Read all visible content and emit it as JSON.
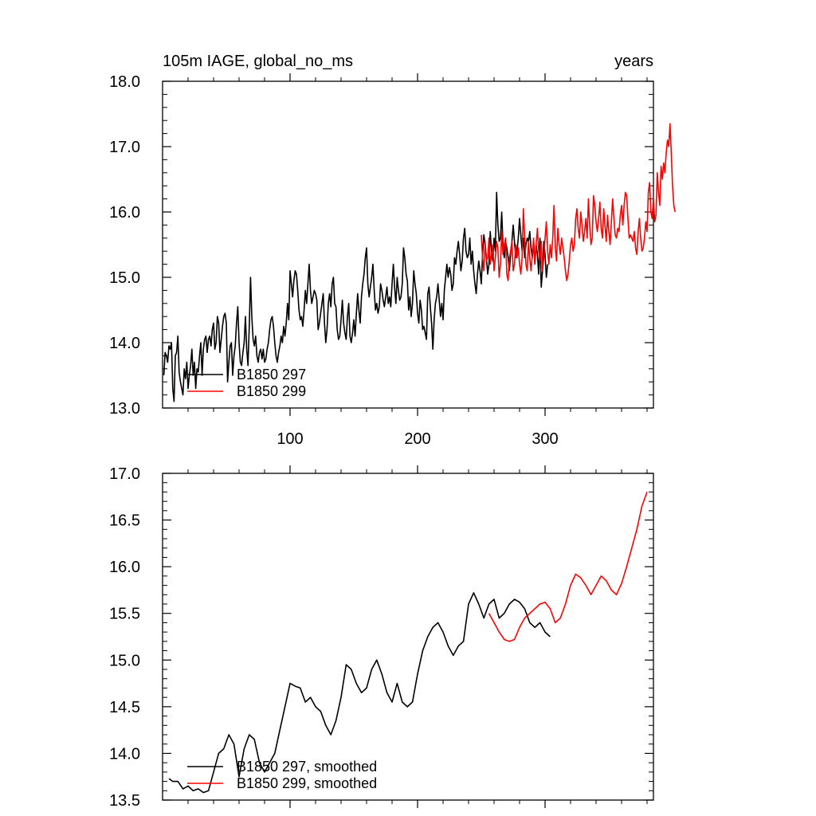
{
  "chart_data": [
    {
      "type": "line",
      "title": "105m IAGE, global_no_ms",
      "units": "years",
      "xlim": [
        0,
        385
      ],
      "ylim": [
        13.0,
        18.0
      ],
      "x_ticks": [
        100,
        200,
        300
      ],
      "x_tick_labels": [
        "100",
        "200",
        "300"
      ],
      "y_ticks": [
        13.0,
        14.0,
        15.0,
        16.0,
        17.0,
        18.0
      ],
      "y_tick_labels": [
        "13.0",
        "14.0",
        "15.0",
        "16.0",
        "17.0",
        "18.0"
      ],
      "legend_position": "bottom-left",
      "series": [
        {
          "name": "B1850 297",
          "color": "#000000",
          "x_start": 1,
          "values": [
            13.5,
            13.85,
            13.8,
            13.7,
            13.95,
            13.9,
            14.0,
            13.3,
            13.1,
            13.8,
            13.85,
            14.1,
            13.55,
            13.4,
            13.3,
            13.2,
            13.6,
            13.45,
            13.7,
            13.3,
            13.5,
            13.65,
            13.9,
            13.5,
            13.7,
            13.3,
            13.6,
            13.55,
            13.8,
            14.0,
            13.5,
            13.9,
            14.05,
            14.1,
            13.85,
            14.05,
            14.1,
            13.95,
            14.2,
            14.3,
            13.9,
            14.0,
            14.4,
            14.3,
            13.85,
            14.05,
            14.25,
            14.4,
            14.45,
            14.3,
            13.4,
            13.7,
            13.95,
            14.0,
            13.5,
            13.8,
            13.95,
            14.3,
            14.55,
            14.0,
            13.7,
            13.65,
            13.85,
            14.0,
            14.4,
            13.9,
            13.65,
            14.25,
            15.0,
            14.4,
            14.05,
            13.95,
            14.1,
            13.8,
            13.7,
            13.85,
            13.9,
            13.75,
            13.9,
            13.7,
            13.75,
            13.9,
            14.0,
            14.2,
            14.35,
            14.4,
            14.25,
            14.0,
            13.8,
            13.7,
            13.85,
            13.95,
            14.1,
            14.0,
            14.25,
            14.1,
            14.3,
            14.6,
            14.35,
            15.1,
            14.9,
            14.7,
            14.95,
            15.1,
            15.05,
            14.8,
            14.5,
            14.35,
            14.4,
            14.25,
            14.5,
            14.8,
            14.6,
            14.9,
            15.2,
            14.8,
            14.6,
            14.7,
            14.8,
            14.75,
            14.65,
            14.2,
            14.3,
            14.45,
            14.6,
            14.75,
            14.3,
            14.0,
            14.2,
            14.6,
            14.75,
            14.55,
            14.9,
            15.0,
            14.6,
            14.55,
            14.2,
            14.05,
            14.1,
            14.35,
            14.65,
            14.3,
            14.15,
            14.05,
            14.4,
            14.6,
            14.1,
            14.0,
            14.15,
            14.35,
            14.1,
            14.45,
            14.75,
            14.5,
            14.3,
            14.7,
            14.9,
            15.05,
            15.3,
            15.45,
            14.9,
            14.7,
            14.85,
            15.0,
            15.2,
            14.8,
            14.5,
            14.6,
            14.45,
            14.55,
            14.9,
            14.8,
            14.65,
            14.55,
            14.7,
            14.85,
            14.6,
            14.7,
            14.55,
            14.9,
            15.2,
            14.85,
            14.6,
            15.0,
            14.8,
            14.65,
            14.7,
            14.9,
            15.45,
            15.3,
            15.05,
            14.95,
            14.5,
            14.7,
            14.4,
            14.6,
            15.1,
            14.9,
            14.75,
            14.45,
            14.3,
            14.65,
            14.5,
            14.2,
            14.25,
            14.15,
            14.05,
            14.75,
            14.85,
            14.55,
            14.3,
            13.9,
            14.35,
            14.6,
            14.7,
            14.9,
            14.65,
            14.4,
            14.6,
            14.35,
            14.8,
            15.0,
            15.2,
            15.0,
            15.15,
            15.05,
            14.8,
            14.9,
            15.3,
            15.2,
            15.4,
            15.55,
            15.35,
            15.1,
            15.25,
            15.6,
            15.75,
            15.4,
            15.3,
            15.35,
            15.6,
            15.2,
            15.4,
            15.1,
            14.9,
            14.75,
            15.05,
            15.25,
            15.1,
            14.9,
            15.35,
            15.65,
            15.5,
            15.3,
            15.05,
            15.2,
            15.7,
            15.4,
            15.25,
            15.6,
            15.4,
            16.3,
            15.8,
            15.55,
            15.6,
            16.0,
            15.5,
            15.3,
            15.55,
            15.45,
            15.3,
            15.1,
            15.35,
            15.55,
            15.8,
            15.55,
            15.3,
            15.4,
            15.6,
            15.9,
            15.65,
            15.4,
            15.6,
            15.3,
            15.5,
            15.6,
            15.55,
            15.7,
            15.45,
            15.3,
            15.55,
            15.2,
            15.5,
            15.35,
            15.05,
            15.6,
            14.85,
            15.1,
            15.55,
            15.35,
            15.0,
            15.2
          ]
        },
        {
          "name": "B1850 299",
          "color": "#ff0000",
          "x_start": 250,
          "values": [
            15.65,
            15.3,
            15.1,
            15.55,
            15.25,
            15.3,
            15.6,
            15.2,
            15.35,
            15.5,
            15.1,
            15.3,
            15.55,
            15.45,
            15.0,
            15.2,
            15.7,
            15.35,
            15.5,
            15.6,
            15.05,
            14.95,
            15.3,
            15.4,
            15.55,
            15.1,
            15.2,
            15.5,
            15.3,
            15.45,
            15.2,
            15.05,
            15.3,
            16.05,
            15.6,
            15.2,
            15.1,
            15.55,
            15.3,
            15.1,
            15.35,
            15.6,
            15.2,
            15.5,
            15.75,
            15.4,
            15.25,
            15.55,
            15.1,
            15.3,
            15.6,
            15.85,
            15.4,
            15.2,
            15.5,
            15.3,
            15.6,
            16.1,
            15.45,
            15.25,
            15.75,
            15.5,
            15.35,
            15.6,
            15.45,
            15.3,
            15.1,
            14.95,
            15.05,
            15.25,
            15.5,
            15.6,
            15.4,
            15.5,
            15.9,
            16.05,
            15.75,
            15.6,
            16.0,
            15.8,
            15.55,
            15.7,
            15.9,
            15.6,
            16.2,
            15.8,
            15.5,
            15.6,
            16.25,
            16.1,
            15.85,
            15.7,
            15.9,
            16.15,
            15.75,
            15.6,
            16.05,
            15.8,
            15.55,
            15.95,
            15.7,
            15.5,
            15.85,
            16.2,
            15.9,
            15.65,
            15.6,
            15.75,
            15.7,
            15.95,
            16.1,
            15.8,
            16.1,
            16.3,
            16.25,
            15.9,
            15.6,
            15.65,
            15.6,
            15.55,
            15.7,
            15.45,
            15.35,
            15.7,
            15.9,
            15.6,
            15.4,
            15.45,
            15.6,
            15.85,
            15.7,
            16.3,
            16.45,
            16.0,
            15.9,
            16.2,
            15.85,
            15.95,
            16.6,
            16.3,
            16.1,
            16.7,
            16.5,
            16.75,
            16.6,
            16.9,
            17.1,
            17.0,
            17.35,
            16.9,
            16.4,
            16.1,
            16.0
          ]
        }
      ]
    },
    {
      "type": "line",
      "title": "",
      "xlim": [
        0,
        385
      ],
      "ylim": [
        13.5,
        17.0
      ],
      "y_ticks": [
        13.5,
        14.0,
        14.5,
        15.0,
        15.5,
        16.0,
        16.5,
        17.0
      ],
      "y_tick_labels": [
        "13.5",
        "14.0",
        "14.5",
        "15.0",
        "15.5",
        "16.0",
        "16.5",
        "17.0"
      ],
      "legend_position": "bottom-left",
      "series": [
        {
          "name": "B1850 297, smoothed",
          "color": "#000000",
          "x": [
            5,
            8,
            12,
            16,
            20,
            24,
            28,
            32,
            36,
            40,
            44,
            48,
            52,
            56,
            60,
            64,
            68,
            72,
            76,
            80,
            84,
            88,
            92,
            96,
            100,
            104,
            108,
            112,
            116,
            120,
            124,
            128,
            132,
            136,
            140,
            144,
            148,
            152,
            156,
            160,
            164,
            168,
            172,
            176,
            180,
            184,
            188,
            192,
            196,
            200,
            204,
            208,
            212,
            216,
            220,
            224,
            228,
            232,
            236,
            240,
            244,
            248,
            252,
            256,
            260,
            264,
            268,
            272,
            276,
            280,
            284,
            288,
            292,
            296,
            300,
            304
          ],
          "y": [
            13.73,
            13.7,
            13.7,
            13.62,
            13.65,
            13.6,
            13.62,
            13.58,
            13.6,
            13.8,
            14.0,
            14.05,
            14.2,
            14.1,
            13.75,
            14.05,
            14.2,
            14.15,
            13.9,
            13.8,
            13.9,
            14.0,
            14.25,
            14.5,
            14.75,
            14.72,
            14.7,
            14.55,
            14.6,
            14.5,
            14.45,
            14.3,
            14.2,
            14.35,
            14.6,
            14.95,
            14.9,
            14.75,
            14.65,
            14.7,
            14.9,
            15.0,
            14.85,
            14.65,
            14.55,
            14.75,
            14.55,
            14.5,
            14.55,
            14.85,
            15.1,
            15.25,
            15.35,
            15.4,
            15.3,
            15.15,
            15.05,
            15.15,
            15.2,
            15.6,
            15.72,
            15.6,
            15.45,
            15.6,
            15.65,
            15.45,
            15.5,
            15.6,
            15.65,
            15.62,
            15.55,
            15.4,
            15.35,
            15.4,
            15.3,
            15.25
          ]
        },
        {
          "name": "B1850 299, smoothed",
          "color": "#ff0000",
          "x": [
            256,
            260,
            264,
            268,
            272,
            276,
            280,
            284,
            288,
            292,
            296,
            300,
            304,
            308,
            312,
            316,
            320,
            324,
            328,
            332,
            336,
            340,
            344,
            348,
            352,
            356,
            360,
            364,
            368,
            372,
            376,
            380
          ],
          "y": [
            15.5,
            15.4,
            15.3,
            15.22,
            15.2,
            15.22,
            15.35,
            15.45,
            15.5,
            15.55,
            15.6,
            15.62,
            15.55,
            15.4,
            15.45,
            15.6,
            15.8,
            15.92,
            15.88,
            15.8,
            15.7,
            15.8,
            15.9,
            15.85,
            15.75,
            15.7,
            15.82,
            16.0,
            16.2,
            16.4,
            16.65,
            16.8
          ]
        }
      ]
    }
  ],
  "plot1": {
    "title": "105m IAGE, global_no_ms",
    "units": "years"
  },
  "legend1": {
    "label_a": "B1850 297",
    "label_b": "B1850 299"
  },
  "legend2": {
    "label_a": "B1850 297, smoothed",
    "label_b": "B1850 299, smoothed"
  }
}
